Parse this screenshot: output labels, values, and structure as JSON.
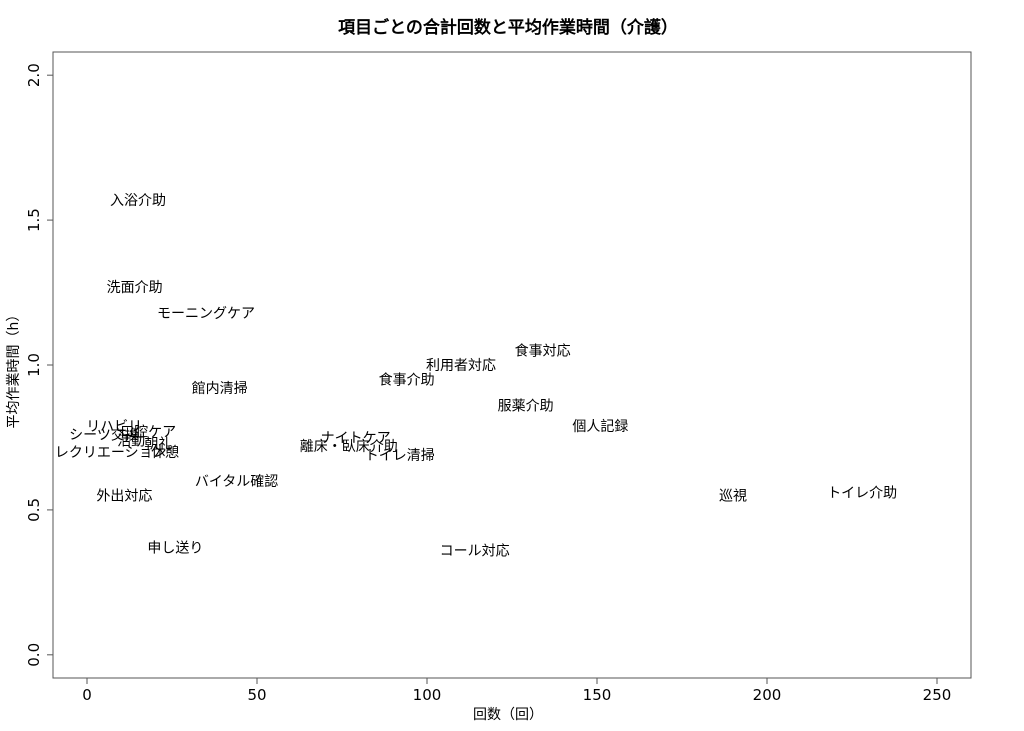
{
  "chart_data": {
    "type": "scatter",
    "title": "項目ごとの合計回数と平均作業時間（介護）",
    "xlabel": "回数（回）",
    "ylabel": "平均作業時間（h）",
    "xlim": [
      -10,
      260
    ],
    "ylim": [
      -0.08,
      2.08
    ],
    "xticks": [
      0,
      50,
      100,
      150,
      200,
      250
    ],
    "yticks": [
      0.0,
      0.5,
      1.0,
      1.5,
      2.0
    ],
    "xtick_labels": [
      "0",
      "50",
      "100",
      "150",
      "200",
      "250"
    ],
    "ytick_labels": [
      "0.0",
      "0.5",
      "1.0",
      "1.5",
      "2.0"
    ],
    "grid": false,
    "points": [
      {
        "label": "入浴介助",
        "x": 15,
        "y": 1.57
      },
      {
        "label": "洗面介助",
        "x": 14,
        "y": 1.27
      },
      {
        "label": "モーニングケア",
        "x": 35,
        "y": 1.18
      },
      {
        "label": "食事対応",
        "x": 134,
        "y": 1.05
      },
      {
        "label": "利用者対応",
        "x": 110,
        "y": 1.0
      },
      {
        "label": "食事介助",
        "x": 94,
        "y": 0.95
      },
      {
        "label": "館内清掃",
        "x": 39,
        "y": 0.92
      },
      {
        "label": "服薬介助",
        "x": 129,
        "y": 0.86
      },
      {
        "label": "個人記録",
        "x": 151,
        "y": 0.79
      },
      {
        "label": "リハビリ",
        "x": 8,
        "y": 0.79
      },
      {
        "label": "口腔ケア",
        "x": 18,
        "y": 0.77
      },
      {
        "label": "シーツ交換",
        "x": 5,
        "y": 0.76
      },
      {
        "label": "ナイトケア",
        "x": 79,
        "y": 0.75
      },
      {
        "label": "活動",
        "x": 13,
        "y": 0.74
      },
      {
        "label": "朝礼",
        "x": 21,
        "y": 0.73
      },
      {
        "label": "離床・臥床介助",
        "x": 77,
        "y": 0.72
      },
      {
        "label": "レクリエーション",
        "x": 7,
        "y": 0.7
      },
      {
        "label": "トイレ清掃",
        "x": 92,
        "y": 0.69
      },
      {
        "label": "休憩",
        "x": 23,
        "y": 0.7
      },
      {
        "label": "バイタル確認",
        "x": 44,
        "y": 0.6
      },
      {
        "label": "トイレ介助",
        "x": 228,
        "y": 0.56
      },
      {
        "label": "巡視",
        "x": 190,
        "y": 0.55
      },
      {
        "label": "外出対応",
        "x": 11,
        "y": 0.55
      },
      {
        "label": "申し送り",
        "x": 26,
        "y": 0.37
      },
      {
        "label": "コール対応",
        "x": 114,
        "y": 0.36
      }
    ]
  }
}
